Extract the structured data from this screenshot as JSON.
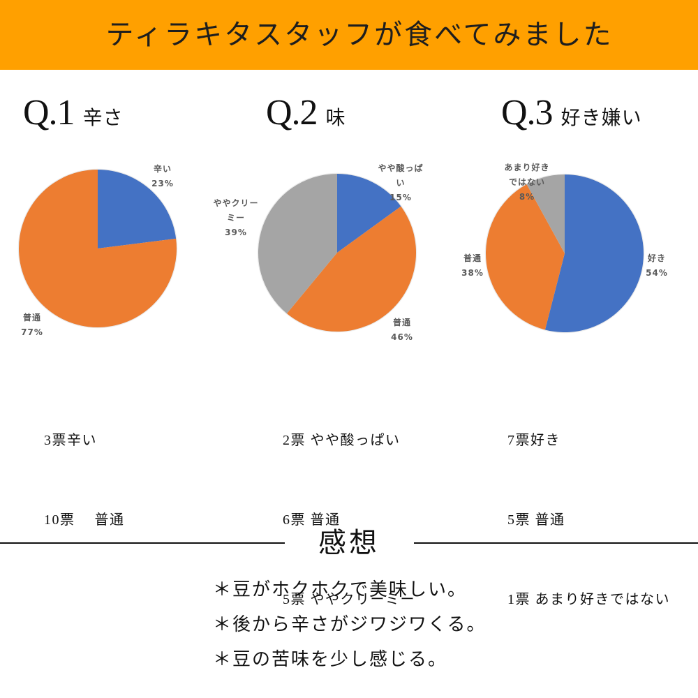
{
  "colors": {
    "header_bg": "#FFA000",
    "label_text": "#595959"
  },
  "header": {
    "title": "ティラキタスタッフが食べてみました"
  },
  "chart_data": [
    {
      "type": "pie",
      "number": "Q.1",
      "title": "辛さ",
      "slices": [
        {
          "label": "辛い",
          "value": 23,
          "percent_label": "23%",
          "color": "#4472C4"
        },
        {
          "label": "普通",
          "value": 77,
          "percent_label": "77%",
          "color": "#ED7D31"
        }
      ],
      "votes": [
        "3票辛い",
        "10票　 普通"
      ]
    },
    {
      "type": "pie",
      "number": "Q.2",
      "title": "味",
      "slices": [
        {
          "label": "やや酸っぱい",
          "value": 15,
          "percent_label": "15%",
          "color": "#4472C4"
        },
        {
          "label": "普通",
          "value": 46,
          "percent_label": "46%",
          "color": "#ED7D31"
        },
        {
          "label": "ややクリーミー",
          "value": 39,
          "percent_label": "39%",
          "color": "#A5A5A5"
        }
      ],
      "votes": [
        "2票 やや酸っぱい",
        "6票 普通",
        "5票 ややクリーミー"
      ]
    },
    {
      "type": "pie",
      "number": "Q.3",
      "title": "好き嫌い",
      "slices": [
        {
          "label": "好き",
          "value": 54,
          "percent_label": "54%",
          "color": "#4472C4"
        },
        {
          "label": "普通",
          "value": 38,
          "percent_label": "38%",
          "color": "#ED7D31"
        },
        {
          "label": "あまり好きではない",
          "value": 8,
          "percent_label": "8%",
          "color": "#A5A5A5"
        }
      ],
      "votes": [
        "7票好き",
        "5票 普通",
        "1票 あまり好きではない"
      ]
    }
  ],
  "impressions": {
    "heading": "感想",
    "comments": [
      "＊豆がホクホクで美味しい。",
      "＊後から辛さがジワジワくる。",
      "＊豆の苦味を少し感じる。"
    ]
  }
}
